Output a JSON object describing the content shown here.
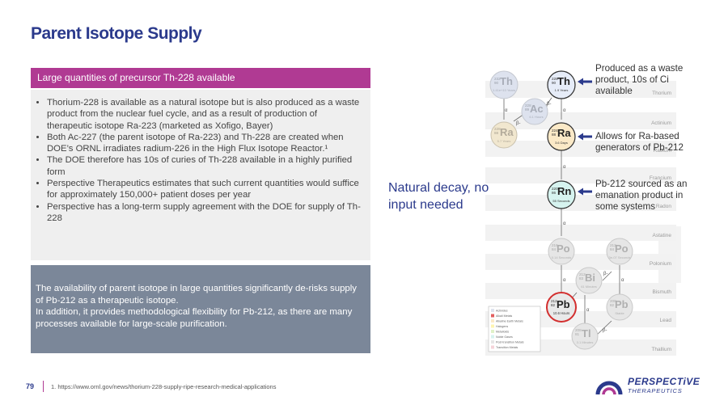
{
  "title": "Parent Isotope Supply",
  "section_header": "Large quantities of precursor Th-228 available",
  "bullets": [
    "Thorium-228 is available as a natural isotope but is also produced as a waste product from the nuclear fuel cycle, and as a result of production of therapeutic isotope Ra-223 (marketed as Xofigo, Bayer)",
    "Both Ac-227 (the parent isotope of Ra-223) and Th-228 are created when DOE’s ORNL irradiates radium-226 in the High Flux Isotope Reactor.¹",
    "The DOE therefore has 10s of curies of Th-228 available in a highly purified form",
    "Perspective Therapeutics estimates that such current quantities would suffice for approximately 150,000+ patient doses per year",
    "Perspective has a long-term supply agreement with the DOE for supply of Th-228"
  ],
  "summary_line1": "The availability of parent isotope in large quantities significantly de-risks supply of Pb-212 as a therapeutic isotope.",
  "summary_line2": "In addition, it provides methodological flexibility for Pb-212, as there are many processes available for large-scale purification.",
  "natural_decay": "Natural decay, no input needed",
  "notes": {
    "th": "Produced as a waste product, 10s of Ci available",
    "ra": "Allows for Ra-based generators of Pb-212",
    "rn": "Pb-212 sourced as an emanation product in some systems"
  },
  "element_rows": [
    "Thorium",
    "Actinium",
    "Radium",
    "Francium",
    "Radon",
    "Astatine",
    "Polonium",
    "Bismuth",
    "Lead",
    "Thallium"
  ],
  "nuclides": [
    {
      "id": "th232",
      "mass": "232",
      "z": "90",
      "symbol": "Th",
      "halflife": "1.41e+10 Years"
    },
    {
      "id": "ac228",
      "mass": "228",
      "z": "89",
      "symbol": "Ac",
      "halflife": "6.1 Hours"
    },
    {
      "id": "th228",
      "mass": "228",
      "z": "90",
      "symbol": "Th",
      "halflife": "1.9 Years"
    },
    {
      "id": "ra228",
      "mass": "228",
      "z": "88",
      "symbol": "Ra",
      "halflife": "5.7 Years"
    },
    {
      "id": "ra224",
      "mass": "224",
      "z": "88",
      "symbol": "Ra",
      "halflife": "3.6 Days"
    },
    {
      "id": "rn220",
      "mass": "220",
      "z": "86",
      "symbol": "Rn",
      "halflife": "55 Seconds"
    },
    {
      "id": "po216",
      "mass": "216",
      "z": "84",
      "symbol": "Po",
      "halflife": "0.14 Seconds"
    },
    {
      "id": "po212",
      "mass": "212",
      "z": "84",
      "symbol": "Po",
      "halflife": "3e-07 Seconds"
    },
    {
      "id": "bi212",
      "mass": "212",
      "z": "83",
      "symbol": "Bi",
      "halflife": "61 Minutes"
    },
    {
      "id": "pb212",
      "mass": "212",
      "z": "82",
      "symbol": "Pb",
      "halflife": "10.6 Hours"
    },
    {
      "id": "pb208",
      "mass": "208",
      "z": "82",
      "symbol": "Pb",
      "halflife": "Stable"
    },
    {
      "id": "tl208",
      "mass": "208",
      "z": "81",
      "symbol": "Tl",
      "halflife": "3.1 Minutes"
    }
  ],
  "legend": [
    "Actinides",
    "Alkali Metals",
    "Alkaline Earth Metals",
    "Halogens",
    "Metalloids",
    "Noble Gases",
    "Post-transition Metals",
    "Transition Metals"
  ],
  "decay_alpha": "α",
  "decay_beta": "β-",
  "page_number": "79",
  "footnote": "1. https://www.ornl.gov/news/thorium-228-supply-ripe-research-medical-applications",
  "logo": {
    "main": "PERSPECTiVE",
    "sub": "THERAPEUTICS"
  },
  "colors": {
    "title": "#2b3a8c",
    "header_bg": "#b03a93",
    "summary_bg": "#7b8799",
    "bullets_bg": "#efefef",
    "highlight_ring": "#d32f2f",
    "arrow": "#2b3a8c"
  }
}
